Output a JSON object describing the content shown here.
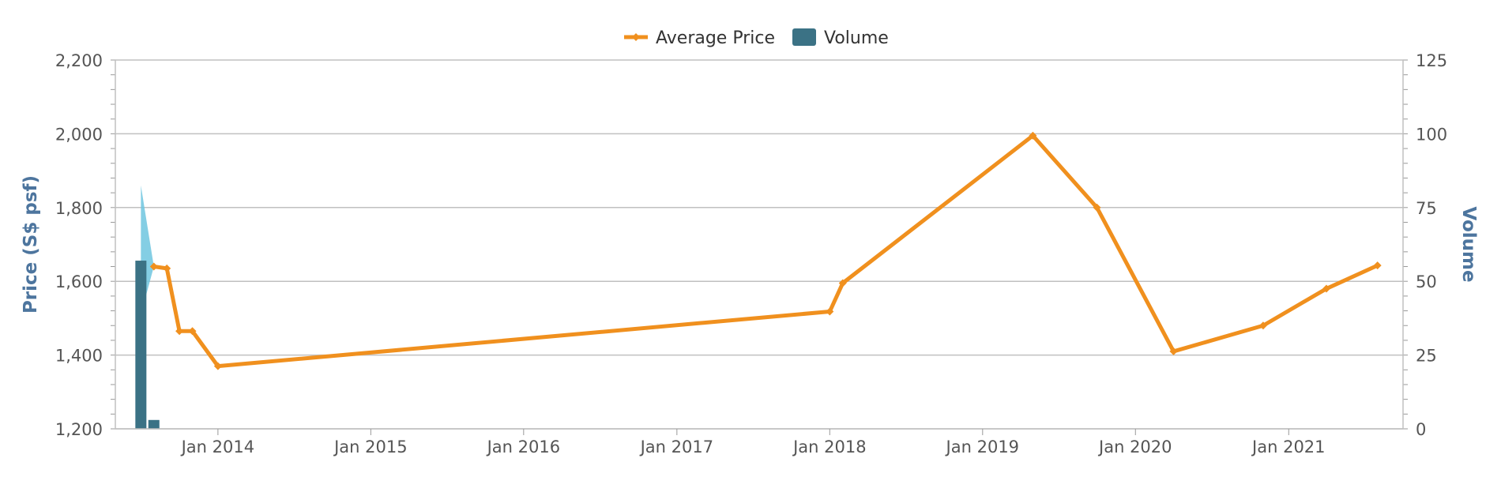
{
  "chart_data": {
    "type": "line",
    "legend": {
      "placement": "top-center",
      "items": [
        {
          "label": "Average Price",
          "color": "#f0901e",
          "icon": "line-diamond-icon"
        },
        {
          "label": "Volume",
          "color": "#3b7285",
          "icon": "square-icon"
        }
      ]
    },
    "x_axis": {
      "type": "date",
      "range": [
        "2013-05-01",
        "2021-10-01"
      ],
      "ticks": [
        {
          "date": "2014-01-01",
          "label": "Jan 2014"
        },
        {
          "date": "2015-01-01",
          "label": "Jan 2015"
        },
        {
          "date": "2016-01-01",
          "label": "Jan 2016"
        },
        {
          "date": "2017-01-01",
          "label": "Jan 2017"
        },
        {
          "date": "2018-01-01",
          "label": "Jan 2018"
        },
        {
          "date": "2019-01-01",
          "label": "Jan 2019"
        },
        {
          "date": "2020-01-01",
          "label": "Jan 2020"
        },
        {
          "date": "2021-01-01",
          "label": "Jan 2021"
        }
      ]
    },
    "y_axis_left": {
      "label": "Price (S$ psf)",
      "range": [
        1200,
        2200
      ],
      "ticks": [
        1200,
        1400,
        1600,
        1800,
        2000,
        2200
      ],
      "tick_labels": [
        "1,200",
        "1,400",
        "1,600",
        "1,800",
        "2,000",
        "2,200"
      ],
      "grid": true
    },
    "y_axis_right": {
      "label": "Volume",
      "range": [
        0,
        125
      ],
      "ticks": [
        0,
        25,
        50,
        75,
        100,
        125
      ],
      "tick_labels": [
        "0",
        "25",
        "50",
        "75",
        "100",
        "125"
      ]
    },
    "series": [
      {
        "name": "Average Price",
        "kind": "line",
        "axis": "left",
        "color": "#f0901e",
        "points": [
          {
            "date": "2013-08-01",
            "value": 1640
          },
          {
            "date": "2013-09-01",
            "value": 1635
          },
          {
            "date": "2013-10-01",
            "value": 1465
          },
          {
            "date": "2013-11-01",
            "value": 1465
          },
          {
            "date": "2014-01-01",
            "value": 1370
          },
          {
            "date": "2018-01-01",
            "value": 1518
          },
          {
            "date": "2018-02-01",
            "value": 1595
          },
          {
            "date": "2019-05-01",
            "value": 1995
          },
          {
            "date": "2019-10-01",
            "value": 1800
          },
          {
            "date": "2020-04-01",
            "value": 1410
          },
          {
            "date": "2020-11-01",
            "value": 1480
          },
          {
            "date": "2021-04-01",
            "value": 1580
          },
          {
            "date": "2021-08-01",
            "value": 1643
          }
        ]
      },
      {
        "name": "Volume",
        "kind": "column",
        "axis": "right",
        "color": "#3b7285",
        "points": [
          {
            "date": "2013-07-01",
            "value": 57
          },
          {
            "date": "2013-08-01",
            "value": 3
          }
        ]
      }
    ],
    "range_band": {
      "color": "#6ec6df",
      "axis": "left",
      "points": [
        {
          "date": "2013-07-01",
          "low": 1510,
          "high": 1860
        },
        {
          "date": "2013-08-01",
          "low": 1640,
          "high": 1640
        }
      ]
    }
  }
}
